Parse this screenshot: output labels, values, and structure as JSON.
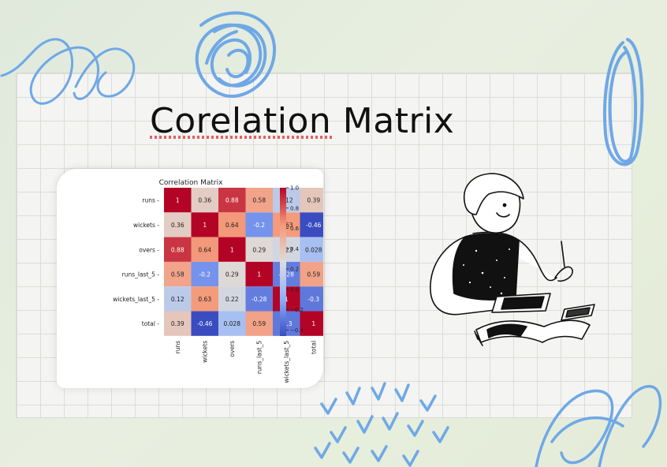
{
  "slide": {
    "title": "Corelation Matrix"
  },
  "colors": {
    "accent_blue": "#6fa8e6",
    "heat_low": "#3b4cc0",
    "heat_mid": "#dddcdb",
    "heat_high": "#b40426"
  },
  "icons": {
    "decor": [
      "scribble-swirl-icon",
      "scribble-ring-icon",
      "scribble-oval-icon",
      "chevron-marks-icon",
      "scribble-loop-icon"
    ],
    "illustration": "person-studying-icon"
  },
  "chart_data": {
    "type": "heatmap",
    "title": "Correlation Matrix",
    "rows": [
      "runs",
      "wickets",
      "overs",
      "runs_last_5",
      "wickets_last_5",
      "total"
    ],
    "cols": [
      "runs",
      "wickets",
      "overs",
      "runs_last_5",
      "wickets_last_5",
      "total"
    ],
    "values": [
      [
        1,
        0.36,
        0.88,
        0.58,
        0.12,
        0.39
      ],
      [
        0.36,
        1,
        0.64,
        -0.2,
        0.63,
        -0.46
      ],
      [
        0.88,
        0.64,
        1,
        0.29,
        0.22,
        0.028
      ],
      [
        0.58,
        -0.2,
        0.29,
        1,
        -0.28,
        0.59
      ],
      [
        0.12,
        0.63,
        0.22,
        -0.28,
        1,
        -0.3
      ],
      [
        0.39,
        -0.46,
        0.028,
        0.59,
        -0.3,
        1
      ]
    ],
    "labels": [
      [
        "1",
        "0.36",
        "0.88",
        "0.58",
        "0.12",
        "0.39"
      ],
      [
        "0.36",
        "1",
        "0.64",
        "-0.2",
        "0.63",
        "-0.46"
      ],
      [
        "0.88",
        "0.64",
        "1",
        "0.29",
        "0.22",
        "0.028"
      ],
      [
        "0.58",
        "-0.2",
        "0.29",
        "1",
        "-0.28",
        "0.59"
      ],
      [
        "0.12",
        "0.63",
        "0.22",
        "-0.28",
        "1",
        "-0.3"
      ],
      [
        "0.39",
        "-0.46",
        "0.028",
        "0.59",
        "-0.3",
        "1"
      ]
    ],
    "colorbar": {
      "min": -0.46,
      "max": 1,
      "ticks": [
        1.0,
        0.8,
        0.6,
        0.4,
        0.2,
        0.0,
        -0.2,
        -0.4
      ],
      "tick_labels": [
        "1.0",
        "0.8",
        "0.6",
        "0.4",
        "0.2",
        "0.0",
        "−0.2",
        "−0.4"
      ]
    },
    "colormap": "coolwarm",
    "legend": "colorbar-right",
    "grid": false
  }
}
